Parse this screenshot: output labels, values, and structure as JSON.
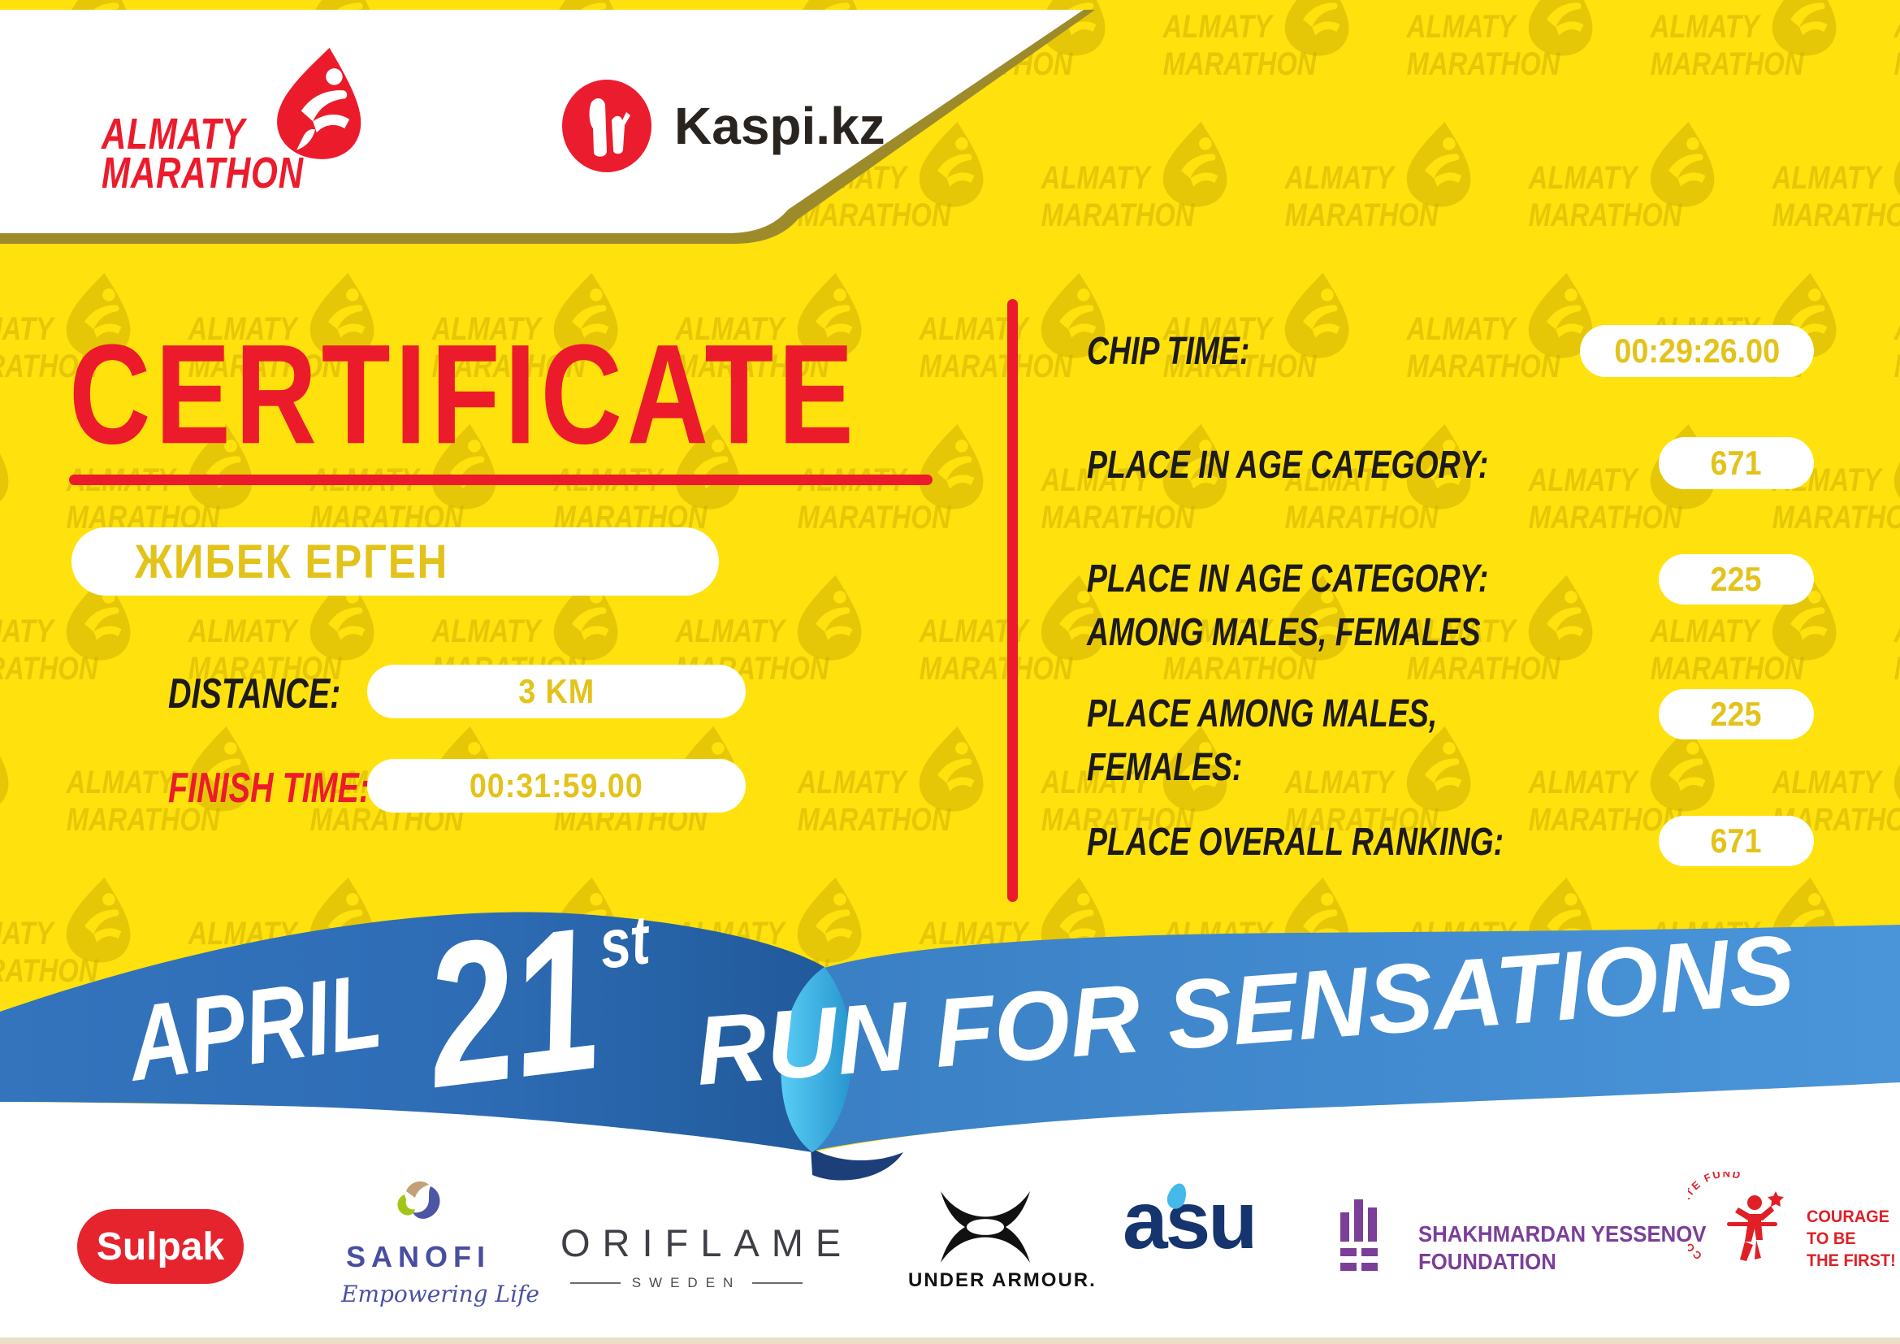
{
  "header": {
    "almaty_logo": {
      "line1": "ALMATY",
      "line2": "MARATHON"
    },
    "kaspi": {
      "label": "Kaspi.kz"
    }
  },
  "certificate": {
    "title": "CERTIFICATE",
    "runner_name": "ЖИБЕК ЕРГЕН"
  },
  "left_fields": [
    {
      "label": "DISTANCE:",
      "value": "3 KM"
    },
    {
      "label": "FINISH TIME:",
      "value": "00:31:59.00"
    }
  ],
  "right_fields": [
    {
      "line1": "CHIP TIME:",
      "line2": "",
      "value": "00:29:26.00"
    },
    {
      "line1": "PLACE IN AGE CATEGORY:",
      "line2": "",
      "value": "671"
    },
    {
      "line1": "PLACE IN AGE CATEGORY:",
      "line2": "AMONG MALES, FEMALES",
      "value": "225"
    },
    {
      "line1": "PLACE AMONG MALES,",
      "line2": "FEMALES:",
      "value": "225"
    },
    {
      "line1": "PLACE OVERALL RANKING:",
      "line2": "",
      "value": "671"
    }
  ],
  "ribbon": {
    "date_word": "APRIL",
    "date_number": "21",
    "date_suffix": "st",
    "slogan": "RUN FOR SENSATIONS"
  },
  "sponsors": {
    "sulpak": "Sulpak",
    "sanofi": {
      "name": "SANOFI",
      "tagline": "Empowering Life"
    },
    "oriflame": {
      "name": "ORIFLAME",
      "sub": "SWEDEN"
    },
    "under_armour": "UNDER ARMOUR.",
    "asu": "asu",
    "yessenov": {
      "line1": "SHAKHMARDAN YESSENOV",
      "line2": "FOUNDATION"
    },
    "courage": {
      "arc": "CORPORATE FUND",
      "line1": "COURAGE",
      "line2": "TO BE",
      "line3": "THE FIRST!"
    }
  },
  "watermark": {
    "line1": "ALMATY",
    "line2": "MARATHON"
  },
  "colors": {
    "background_yellow": "#ffe10d",
    "red": "#ec1b2c",
    "gold_border": "#9d8b2b",
    "gold_text": "#e3c31b",
    "dark_text": "#1d1a1b",
    "ribbon_blue_left": "#2e6db6",
    "ribbon_blue_right": "#4a95da",
    "ribbon_cyan_fold": "#49c3f2",
    "ribbon_navy_shadow": "#1c3e79"
  }
}
